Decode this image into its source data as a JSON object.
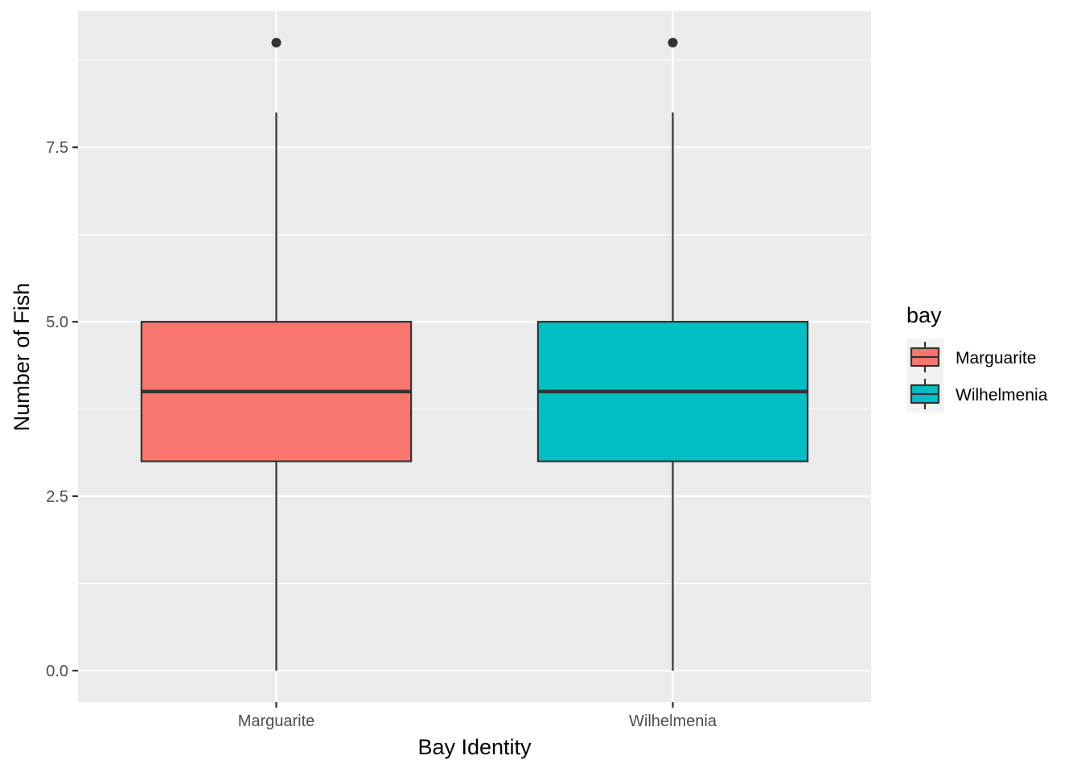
{
  "chart_data": {
    "type": "box",
    "xlabel": "Bay Identity",
    "ylabel": "Number of Fish",
    "ylim": [
      -0.45,
      9.45
    ],
    "y_ticks": [
      0,
      2.5,
      5,
      7.5
    ],
    "y_tick_labels": [
      "0.0",
      "2.5",
      "5.0",
      "7.5"
    ],
    "y_minor_ticks": [
      1.25,
      3.75,
      6.25,
      8.75
    ],
    "grid": true,
    "categories": [
      "Marguarite",
      "Wilhelmenia"
    ],
    "series": [
      {
        "name": "Marguarite",
        "color": "#F8766D",
        "min": 0,
        "q1": 3,
        "median": 4,
        "q3": 5,
        "max": 8,
        "outliers": [
          9
        ]
      },
      {
        "name": "Wilhelmenia",
        "color": "#00BFC4",
        "min": 0,
        "q1": 3,
        "median": 4,
        "q3": 5,
        "max": 8,
        "outliers": [
          9
        ]
      }
    ],
    "legend": {
      "title": "bay",
      "position": "right",
      "entries": [
        "Marguarite",
        "Wilhelmenia"
      ]
    }
  },
  "colors": {
    "panel_background": "#EBEBEB",
    "grid_line": "#FFFFFF",
    "box_outline": "#333333",
    "tick_label": "#4D4D4D"
  }
}
